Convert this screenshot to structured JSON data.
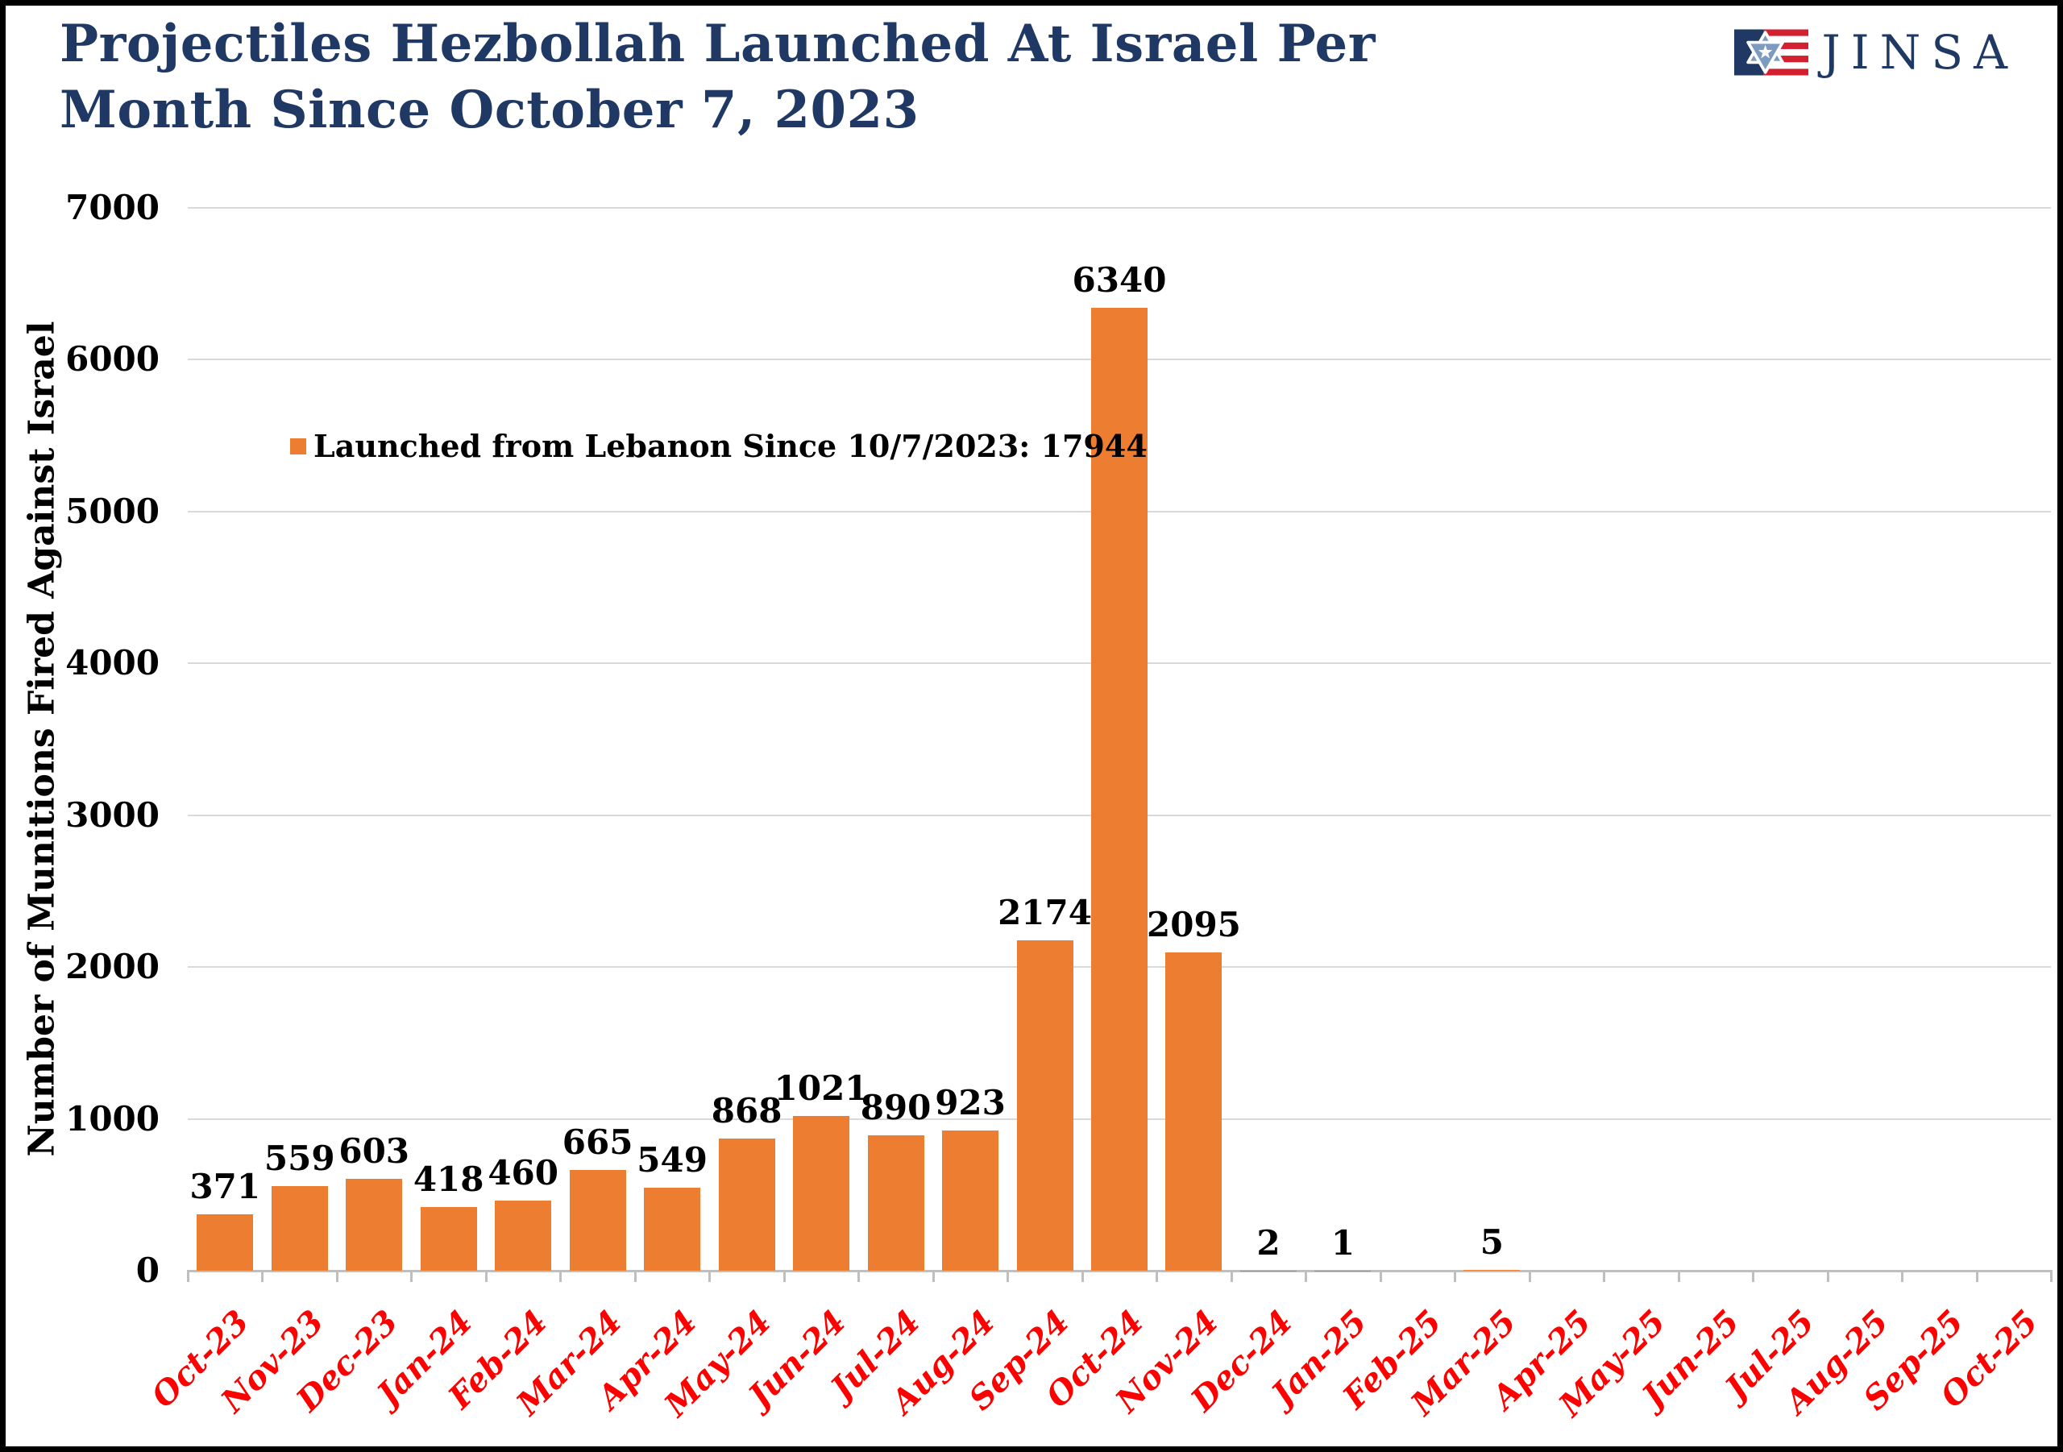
{
  "header": {
    "title_line1": "Projectiles Hezbollah Launched At Israel Per",
    "title_line2": "Month Since October 7, 2023"
  },
  "logo": {
    "text": "JINSA",
    "flag_icon": "star-of-david-flag"
  },
  "legend": {
    "label": "Launched from Lebanon Since 10/7/2023: 17944",
    "marker_color": "#ED7D31"
  },
  "colors": {
    "navy": "#1F3864",
    "bar_orange": "#ED7D31",
    "label_red": "#FF0000",
    "grid_gray": "#D9D9D9",
    "axis_gray": "#BFBFBF",
    "logo_red": "#D22030",
    "logo_star_blue": "#7D9BC1"
  },
  "chart_data": {
    "type": "bar",
    "title": "Projectiles Hezbollah Launched At Israel Per Month Since October 7, 2023",
    "xlabel": "",
    "ylabel": "Number of Munitions Fired Against Israel",
    "ylim": [
      0,
      7000
    ],
    "yticks": [
      0,
      1000,
      2000,
      3000,
      4000,
      5000,
      6000,
      7000
    ],
    "grid": true,
    "legend_position": "upper-left-inside",
    "legend_entries": [
      "Launched from Lebanon Since 10/7/2023: 17944"
    ],
    "bar_color": "#ED7D31",
    "data_label_style": "outside-end",
    "categories": [
      "Oct-23",
      "Nov-23",
      "Dec-23",
      "Jan-24",
      "Feb-24",
      "Mar-24",
      "Apr-24",
      "May-24",
      "Jun-24",
      "Jul-24",
      "Aug-24",
      "Sep-24",
      "Oct-24",
      "Nov-24",
      "Dec-24",
      "Jan-25",
      "Feb-25",
      "Mar-25",
      "Apr-25",
      "May-25",
      "Jun-25",
      "Jul-25",
      "Aug-25",
      "Sep-25",
      "Oct-25"
    ],
    "values": [
      371,
      559,
      603,
      418,
      460,
      665,
      549,
      868,
      1021,
      890,
      923,
      2174,
      6340,
      2095,
      2,
      1,
      null,
      5,
      null,
      null,
      null,
      null,
      null,
      null,
      null
    ],
    "total_shown_in_legend": 17944
  }
}
